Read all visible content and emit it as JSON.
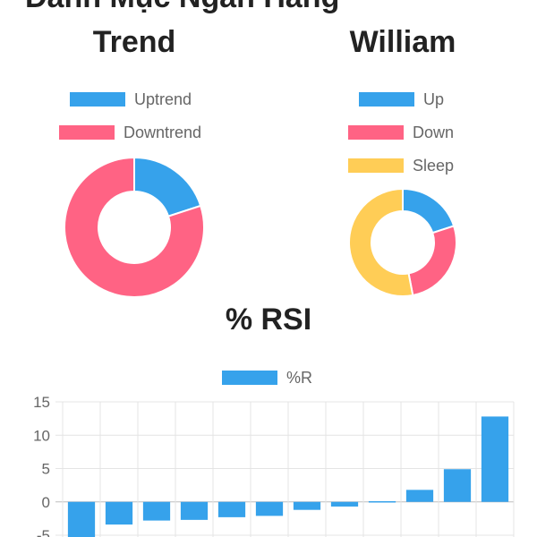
{
  "page": {
    "title": "Danh Mục Ngân Hàng"
  },
  "chart_data": [
    {
      "type": "pie",
      "variant": "doughnut",
      "title": "Trend",
      "labels": [
        "Uptrend",
        "Downtrend"
      ],
      "values": [
        20,
        80
      ],
      "colors": [
        "#36a2eb",
        "#ff6384"
      ],
      "legend_position": "top"
    },
    {
      "type": "pie",
      "variant": "doughnut",
      "title": "William",
      "labels": [
        "Up",
        "Down",
        "Sleep"
      ],
      "values": [
        20,
        27,
        53
      ],
      "colors": [
        "#36a2eb",
        "#ff6384",
        "#ffcd56"
      ],
      "legend_position": "top"
    },
    {
      "type": "bar",
      "title": "% RSI",
      "series": [
        {
          "name": "%R",
          "color": "#36a2eb",
          "values": [
            -5.3,
            -3.4,
            -2.8,
            -2.7,
            -2.3,
            -2.1,
            -1.2,
            -0.7,
            -0.1,
            1.8,
            4.9,
            12.8
          ]
        }
      ],
      "categories": [
        "",
        "",
        "",
        "",
        "",
        "",
        "",
        "",
        "",
        "",
        "",
        ""
      ],
      "ylim": [
        -5,
        15
      ],
      "y_ticks": [
        "15",
        "10",
        "5",
        "0",
        "-5"
      ],
      "grid": true,
      "legend_position": "top"
    }
  ]
}
